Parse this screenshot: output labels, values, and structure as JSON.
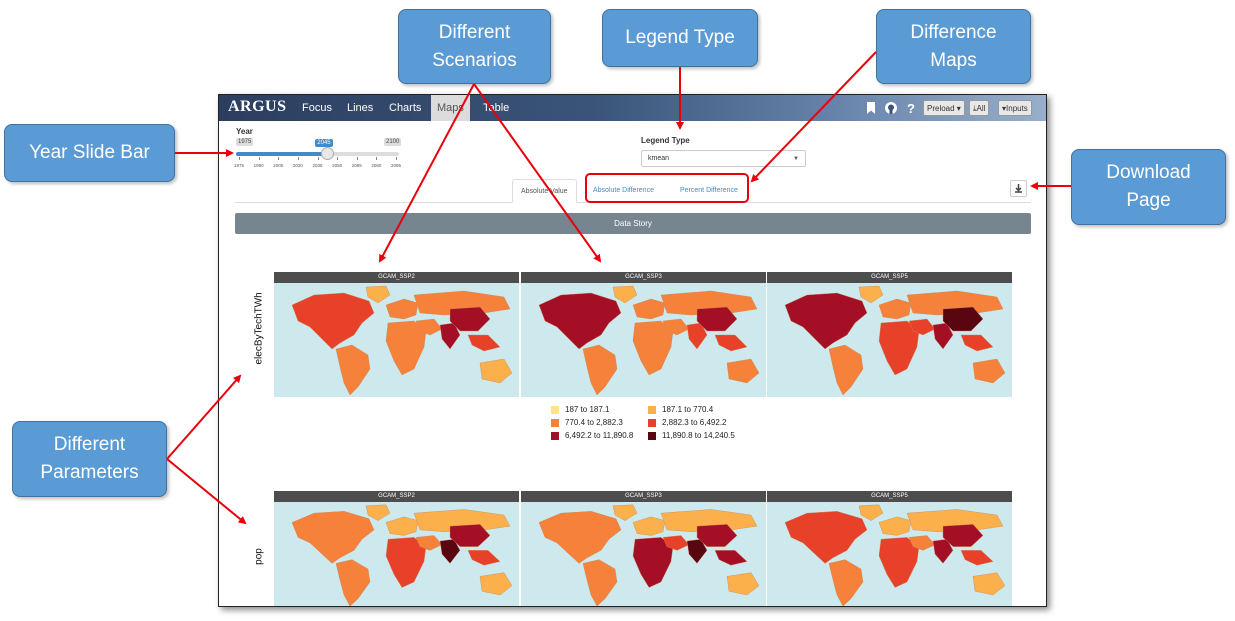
{
  "callouts": {
    "scenarios": [
      "Different",
      "Scenarios"
    ],
    "legend_type": "Legend Type",
    "difference_maps": [
      "Difference",
      "Maps"
    ],
    "year_slide_bar": "Year Slide Bar",
    "download_page": [
      "Download",
      "Page"
    ],
    "parameters": [
      "Different",
      "Parameters"
    ]
  },
  "app": {
    "brand": "ARGUS",
    "nav_tabs": [
      "Focus",
      "Lines",
      "Charts",
      "Maps",
      "Table"
    ],
    "active_tab": "Maps",
    "buttons": {
      "preload": "Preload ▾",
      "all": "All",
      "inputs": "Inputs"
    }
  },
  "year_slider": {
    "label": "Year",
    "min": "1975",
    "max": "2100",
    "value": "2045",
    "value_fraction": 0.56,
    "ticks": [
      "1975",
      "1990",
      "2005",
      "2020",
      "2035",
      "2050",
      "2065",
      "2080",
      "2095"
    ]
  },
  "legend_type": {
    "label": "Legend Type",
    "value": "kmean"
  },
  "subtabs": [
    "Absolute Value",
    "Absolute Difference",
    "Percent Difference"
  ],
  "data_story": "Data Story",
  "parameters": [
    "elecByTechTWh",
    "pop"
  ],
  "scenarios": [
    "GCAM_SSP2",
    "GCAM_SSP3",
    "GCAM_SSP5"
  ],
  "legend": [
    {
      "label": "187 to 187.1",
      "color": "#ffe38c"
    },
    {
      "label": "187.1 to 770.4",
      "color": "#fbb04c"
    },
    {
      "label": "770.4 to 2,882.3",
      "color": "#f5813b"
    },
    {
      "label": "2,882.3 to 6,492.2",
      "color": "#e8412a"
    },
    {
      "label": "6,492.2 to 11,890.8",
      "color": "#a50f26"
    },
    {
      "label": "11,890.8 to 14,240.5",
      "color": "#5a0610"
    }
  ],
  "colors": {
    "ocean": "#cde9ee",
    "callout": "#5b9bd5",
    "arrow": "#e8000b"
  }
}
